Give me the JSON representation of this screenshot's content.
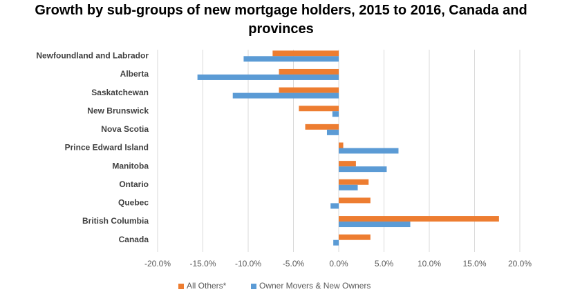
{
  "chart_data": {
    "type": "hbar",
    "title": "Growth by sub-groups of new mortgage holders, 2015 to 2016, Canada and provinces",
    "categories": [
      "Newfoundland and Labrador",
      "Alberta",
      "Saskatchewan",
      "New Brunswick",
      "Nova Scotia",
      "Prince Edward Island",
      "Manitoba",
      "Ontario",
      "Quebec",
      "British Columbia",
      "Canada"
    ],
    "series": [
      {
        "name": "All Others*",
        "color": "#ed7d31",
        "values": [
          -7.3,
          -6.6,
          -6.6,
          -4.4,
          -3.7,
          0.5,
          1.9,
          3.3,
          3.5,
          17.7,
          3.5
        ]
      },
      {
        "name": "Owner Movers & New Owners",
        "color": "#5b9bd5",
        "values": [
          -10.5,
          -15.6,
          -11.7,
          -0.7,
          -1.3,
          6.6,
          5.3,
          2.1,
          -0.9,
          7.9,
          -0.6
        ]
      }
    ],
    "xlim": [
      -20,
      20
    ],
    "xticks": [
      {
        "value": -20,
        "label": "-20.0%"
      },
      {
        "value": -15,
        "label": "-15.0%"
      },
      {
        "value": -10,
        "label": "-10.0%"
      },
      {
        "value": -5,
        "label": "-5.0%"
      },
      {
        "value": 0,
        "label": "0.0%"
      },
      {
        "value": 5,
        "label": "5.0%"
      },
      {
        "value": 10,
        "label": "10.0%"
      },
      {
        "value": 15,
        "label": "15.0%"
      },
      {
        "value": 20,
        "label": "20.0%"
      }
    ],
    "grid": true,
    "legend": "bottom"
  }
}
